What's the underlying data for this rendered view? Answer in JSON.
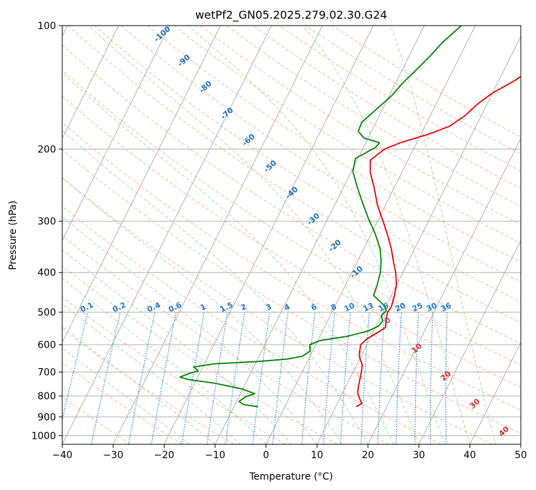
{
  "chart_data": {
    "type": "line",
    "title": "wetPf2_GN05.2025.279.02.30.G24",
    "xlabel": "Temperature (°C)",
    "ylabel": "Pressure (hPa)",
    "xlim": [
      -40,
      50
    ],
    "ylim": [
      1050,
      100
    ],
    "y_scale": "log",
    "grid": true,
    "x_ticks": [
      -40,
      -30,
      -20,
      -10,
      0,
      10,
      20,
      30,
      40,
      50
    ],
    "y_ticks": [
      1000,
      900,
      800,
      700,
      600,
      500,
      400,
      300,
      200,
      100
    ],
    "series": [
      {
        "color": "#e00000",
        "points": [
          [
            14.0,
            850
          ],
          [
            14.8,
            835
          ],
          [
            13.8,
            810
          ],
          [
            12.9,
            785
          ],
          [
            12.4,
            755
          ],
          [
            12.0,
            725
          ],
          [
            11.6,
            698
          ],
          [
            11.1,
            672
          ],
          [
            10.3,
            655
          ],
          [
            9.6,
            638
          ],
          [
            9.2,
            620
          ],
          [
            8.8,
            600
          ],
          [
            9.5,
            580
          ],
          [
            10.8,
            562
          ],
          [
            12.0,
            545
          ],
          [
            11.3,
            520
          ],
          [
            10.9,
            500
          ],
          [
            11.1,
            485
          ],
          [
            10.6,
            455
          ],
          [
            10.0,
            430
          ],
          [
            8.6,
            400
          ],
          [
            7.0,
            375
          ],
          [
            5.4,
            350
          ],
          [
            3.4,
            325
          ],
          [
            1.1,
            300
          ],
          [
            -1.5,
            275
          ],
          [
            -3.8,
            250
          ],
          [
            -6.2,
            228
          ],
          [
            -7.4,
            213
          ],
          [
            -5.7,
            200
          ],
          [
            -3.2,
            193
          ],
          [
            1.5,
            184
          ],
          [
            4.8,
            176
          ],
          [
            6.8,
            166
          ],
          [
            8.2,
            155
          ],
          [
            10.0,
            146
          ],
          [
            13.2,
            136
          ],
          [
            15.2,
            128
          ],
          [
            17.9,
            120
          ],
          [
            20.5,
            114
          ],
          [
            22.9,
            109
          ],
          [
            23.2,
            104
          ],
          [
            24.5,
            100
          ]
        ]
      },
      {
        "color": "#008000",
        "points": [
          [
            -5.3,
            850
          ],
          [
            -8.3,
            840
          ],
          [
            -9.5,
            825
          ],
          [
            -8.7,
            805
          ],
          [
            -7.2,
            790
          ],
          [
            -10.0,
            770
          ],
          [
            -16.0,
            745
          ],
          [
            -21.5,
            730
          ],
          [
            -23.5,
            720
          ],
          [
            -22.0,
            705
          ],
          [
            -20.5,
            695
          ],
          [
            -21.8,
            680
          ],
          [
            -18.0,
            668
          ],
          [
            -10.0,
            660
          ],
          [
            -4.0,
            650
          ],
          [
            -1.5,
            640
          ],
          [
            -0.5,
            622
          ],
          [
            -1.2,
            600
          ],
          [
            0.5,
            586
          ],
          [
            5.5,
            572
          ],
          [
            9.0,
            555
          ],
          [
            10.5,
            540
          ],
          [
            10.8,
            525
          ],
          [
            10.0,
            510
          ],
          [
            10.5,
            495
          ],
          [
            9.4,
            480
          ],
          [
            6.5,
            455
          ],
          [
            6.2,
            430
          ],
          [
            5.6,
            400
          ],
          [
            4.6,
            375
          ],
          [
            3.2,
            350
          ],
          [
            0.8,
            322
          ],
          [
            -2.1,
            295
          ],
          [
            -4.8,
            270
          ],
          [
            -7.4,
            247
          ],
          [
            -9.7,
            227
          ],
          [
            -10.5,
            211
          ],
          [
            -7.6,
            198
          ],
          [
            -7.3,
            193
          ],
          [
            -10.8,
            188
          ],
          [
            -12.6,
            181
          ],
          [
            -12.8,
            172
          ],
          [
            -11.2,
            160
          ],
          [
            -9.5,
            148
          ],
          [
            -8.6,
            138
          ],
          [
            -7.2,
            128
          ],
          [
            -5.8,
            118
          ],
          [
            -4.8,
            110
          ],
          [
            -3.6,
            104
          ],
          [
            -2.7,
            100
          ]
        ]
      }
    ],
    "mixing_ratio_labels": [
      "0.1",
      "0.2",
      "0.4",
      "0.6",
      "1",
      "1.5",
      "2",
      "3",
      "4",
      "6",
      "8",
      "10",
      "13",
      "16",
      "20",
      "25",
      "30",
      "36"
    ],
    "dry_adiabat_labels": [
      "-100",
      "-90",
      "-80",
      "-70",
      "-60",
      "-50",
      "-40",
      "-30",
      "-20",
      "-10"
    ],
    "moist_adiabat_labels": [
      "0",
      "10",
      "20",
      "30",
      "40"
    ],
    "colors": {
      "temperature": "#e00000",
      "dewpoint": "#008000",
      "dry_adiabat": "#f4a07a",
      "moist_adiabat": "#8cc88c",
      "mixing_ratio": "#1f77d4",
      "dry_label": "#1f6fb4",
      "moist_label": "#d03030",
      "grid": "#b0b0b0"
    }
  }
}
